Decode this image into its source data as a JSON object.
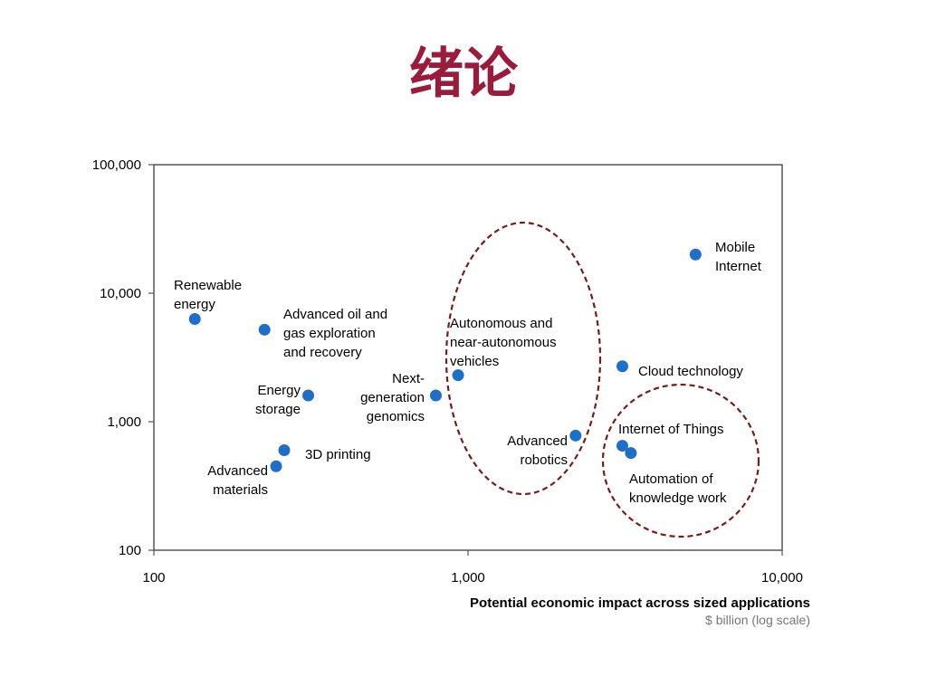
{
  "slide": {
    "title": "绪论",
    "title_color": "#9b1b3c"
  },
  "chart_data": {
    "type": "scatter",
    "x_scale": "log",
    "y_scale": "log",
    "xlim": [
      100,
      10000
    ],
    "ylim": [
      100,
      100000
    ],
    "x_ticks": [
      100,
      1000,
      10000
    ],
    "x_tick_labels": [
      "100",
      "1,000",
      "10,000"
    ],
    "y_ticks": [
      100,
      1000,
      10000,
      100000
    ],
    "y_tick_labels": [
      "100",
      "1,000",
      "10,000",
      "100,000"
    ],
    "xlabel": "Potential economic impact across sized applications",
    "xlabel_unit": "$ billion (log scale)",
    "ylabel": "",
    "grid": false,
    "marker_color": "#1f6fc8",
    "points": [
      {
        "label_lines": [
          "Renewable",
          "energy"
        ],
        "x": 135,
        "y": 6300
      },
      {
        "label_lines": [
          "Advanced oil and",
          "gas exploration",
          "and recovery"
        ],
        "x": 225,
        "y": 5200
      },
      {
        "label_lines": [
          "Energy",
          "storage"
        ],
        "x": 310,
        "y": 1600
      },
      {
        "label_lines": [
          "3D printing"
        ],
        "x": 260,
        "y": 600
      },
      {
        "label_lines": [
          "Advanced",
          "materials"
        ],
        "x": 245,
        "y": 450
      },
      {
        "label_lines": [
          "Next-",
          "generation",
          "genomics"
        ],
        "x": 790,
        "y": 1600
      },
      {
        "label_lines": [
          "Autonomous and",
          "near-autonomous",
          "vehicles"
        ],
        "x": 930,
        "y": 2300
      },
      {
        "label_lines": [
          "Advanced",
          "robotics"
        ],
        "x": 2200,
        "y": 780
      },
      {
        "label_lines": [
          "Cloud technology"
        ],
        "x": 3100,
        "y": 2700
      },
      {
        "label_lines": [
          "Internet of Things"
        ],
        "x": 3100,
        "y": 650
      },
      {
        "label_lines": [
          "Automation of",
          "knowledge work"
        ],
        "x": 3300,
        "y": 570
      },
      {
        "label_lines": [
          "Mobile",
          "Internet"
        ],
        "x": 5300,
        "y": 20000
      }
    ],
    "highlight_color": "#7a1a1a"
  }
}
